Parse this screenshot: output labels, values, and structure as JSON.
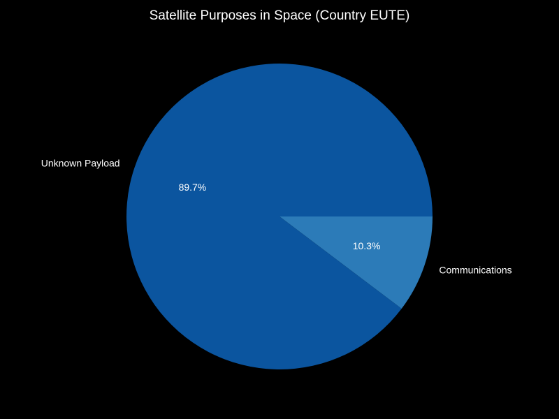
{
  "chart_data": {
    "type": "pie",
    "title": "Satellite Purposes in Space (Country EUTE)",
    "slices": [
      {
        "label": "Communications",
        "value": 10.3,
        "pct_label": "10.3%",
        "color": "#2c7bb8"
      },
      {
        "label": "Unknown Payload",
        "value": 89.7,
        "pct_label": "89.7%",
        "color": "#0b559f"
      }
    ],
    "start_angle_deg": 0,
    "direction": "clockwise",
    "background": "#000000",
    "text_color": "#ffffff"
  }
}
